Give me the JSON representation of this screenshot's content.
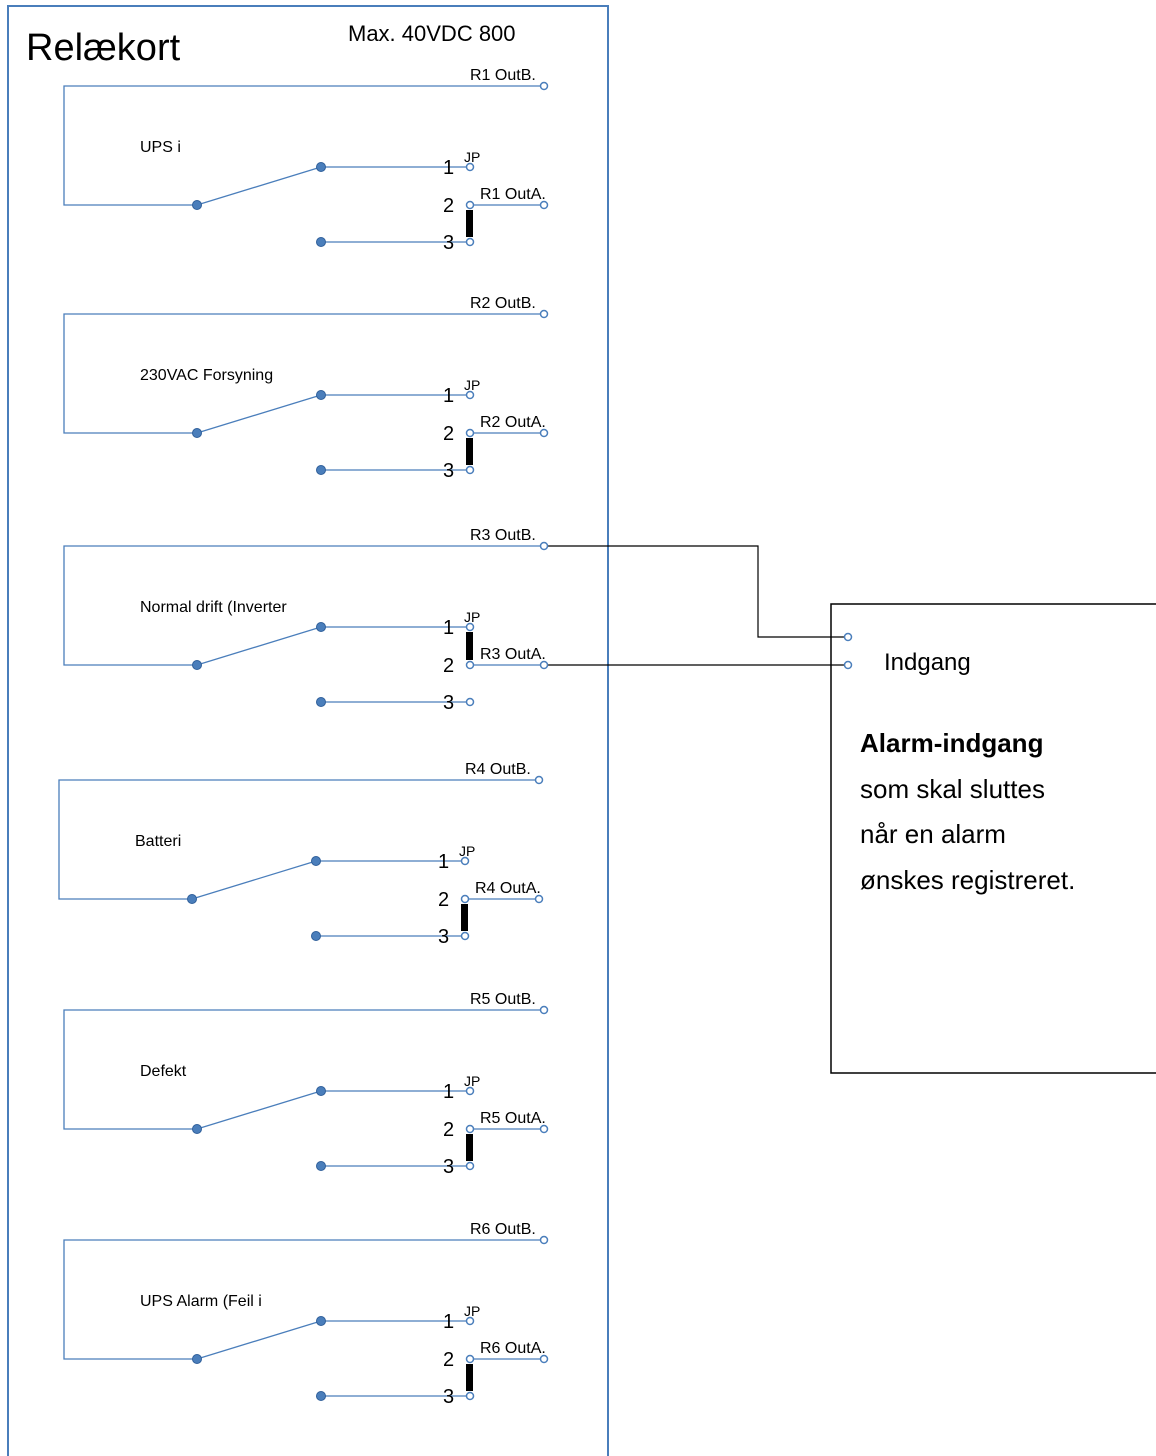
{
  "board": {
    "title": "Relækort",
    "rating": "Max. 40VDC 800",
    "pin_labels": [
      "1",
      "2",
      "3"
    ],
    "jumper_label": "JP",
    "relays": [
      {
        "label": "UPS i",
        "outB": "R1  OutB.",
        "outA": "R1  OutA."
      },
      {
        "label": "230VAC Forsyning",
        "outB": "R2  OutB.",
        "outA": "R2  OutA."
      },
      {
        "label": "Normal drift (Inverter",
        "outB": "R3  OutB.",
        "outA": "R3  OutA."
      },
      {
        "label": "Batteri",
        "outB": "R4  OutB.",
        "outA": "R4  OutA."
      },
      {
        "label": "Defekt",
        "outB": "R5  OutB.",
        "outA": "R5  OutA."
      },
      {
        "label": "UPS Alarm (Feil i",
        "outB": "R6  OutB.",
        "outA": "R6  OutA."
      }
    ]
  },
  "alarm": {
    "input": "Indgang",
    "title": "Alarm-indgang",
    "lines": [
      "som skal sluttes",
      "når en alarm",
      "ønskes registreret."
    ]
  }
}
